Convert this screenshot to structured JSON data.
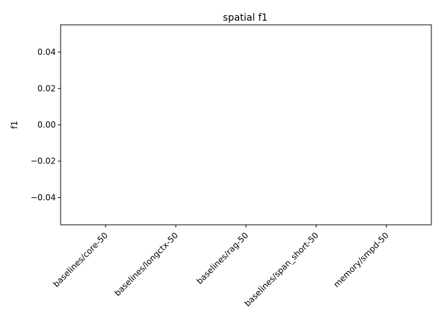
{
  "chart_data": {
    "type": "bar",
    "title": "spatial f1",
    "xlabel": "",
    "ylabel": "f1",
    "categories": [
      "baselines/core-50",
      "baselines/longctx-50",
      "baselines/rag-50",
      "baselines/span_short-50",
      "memory/smpd-50"
    ],
    "values": [
      0,
      0,
      0,
      0,
      0
    ],
    "ylim": [
      -0.055,
      0.055
    ],
    "yticks": [
      -0.04,
      -0.02,
      0.0,
      0.02,
      0.04
    ],
    "ytick_labels": [
      "−0.04",
      "−0.02",
      "0.00",
      "0.02",
      "0.04"
    ],
    "grid": false,
    "colors": {
      "bar": "#1f77b4",
      "axis": "#000000",
      "background": "#ffffff"
    }
  }
}
